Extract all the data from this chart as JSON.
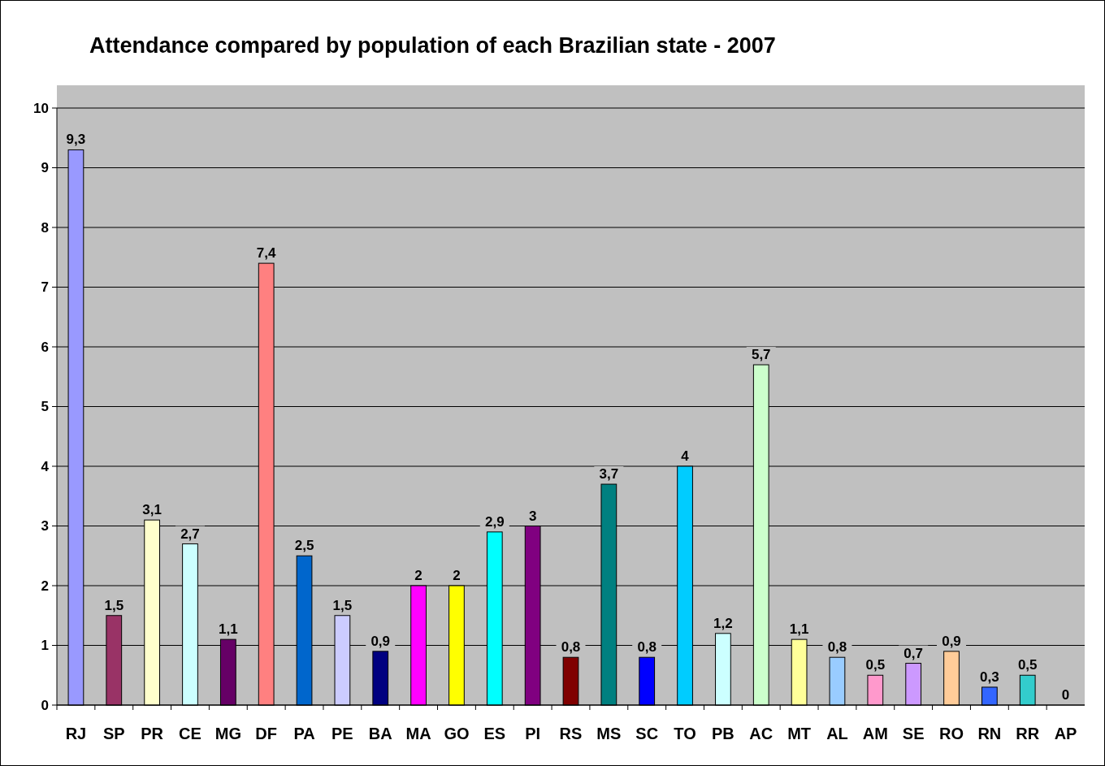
{
  "chart_data": {
    "type": "bar",
    "title": "Attendance compared by population of each Brazilian state - 2007",
    "categories": [
      "RJ",
      "SP",
      "PR",
      "CE",
      "MG",
      "DF",
      "PA",
      "PE",
      "BA",
      "MA",
      "GO",
      "ES",
      "PI",
      "RS",
      "MS",
      "SC",
      "TO",
      "PB",
      "AC",
      "MT",
      "AL",
      "AM",
      "SE",
      "RO",
      "RN",
      "RR",
      "AP"
    ],
    "values": [
      9.3,
      1.5,
      3.1,
      2.7,
      1.1,
      7.4,
      2.5,
      1.5,
      0.9,
      2,
      2,
      2.9,
      3,
      0.8,
      3.7,
      0.8,
      4,
      1.2,
      5.7,
      1.1,
      0.8,
      0.5,
      0.7,
      0.9,
      0.3,
      0.5,
      0
    ],
    "value_labels": [
      "9,3",
      "1,5",
      "3,1",
      "2,7",
      "1,1",
      "7,4",
      "2,5",
      "1,5",
      "0,9",
      "2",
      "2",
      "2,9",
      "3",
      "0,8",
      "3,7",
      "0,8",
      "4",
      "1,2",
      "5,7",
      "1,1",
      "0,8",
      "0,5",
      "0,7",
      "0,9",
      "0,3",
      "0,5",
      "0"
    ],
    "colors": [
      "#9999ff",
      "#993366",
      "#ffffcc",
      "#ccffff",
      "#660066",
      "#ff8080",
      "#0066cc",
      "#ccccff",
      "#000080",
      "#ff00ff",
      "#ffff00",
      "#00ffff",
      "#800080",
      "#800000",
      "#008080",
      "#0000ff",
      "#00ccff",
      "#ccffff",
      "#ccffcc",
      "#ffff99",
      "#99ccff",
      "#ff99cc",
      "#cc99ff",
      "#ffcc99",
      "#3366ff",
      "#33cccc",
      "#000000"
    ],
    "ylim": [
      0,
      10
    ],
    "yticks": [
      0,
      1,
      2,
      3,
      4,
      5,
      6,
      7,
      8,
      9,
      10
    ],
    "grid": "y"
  }
}
